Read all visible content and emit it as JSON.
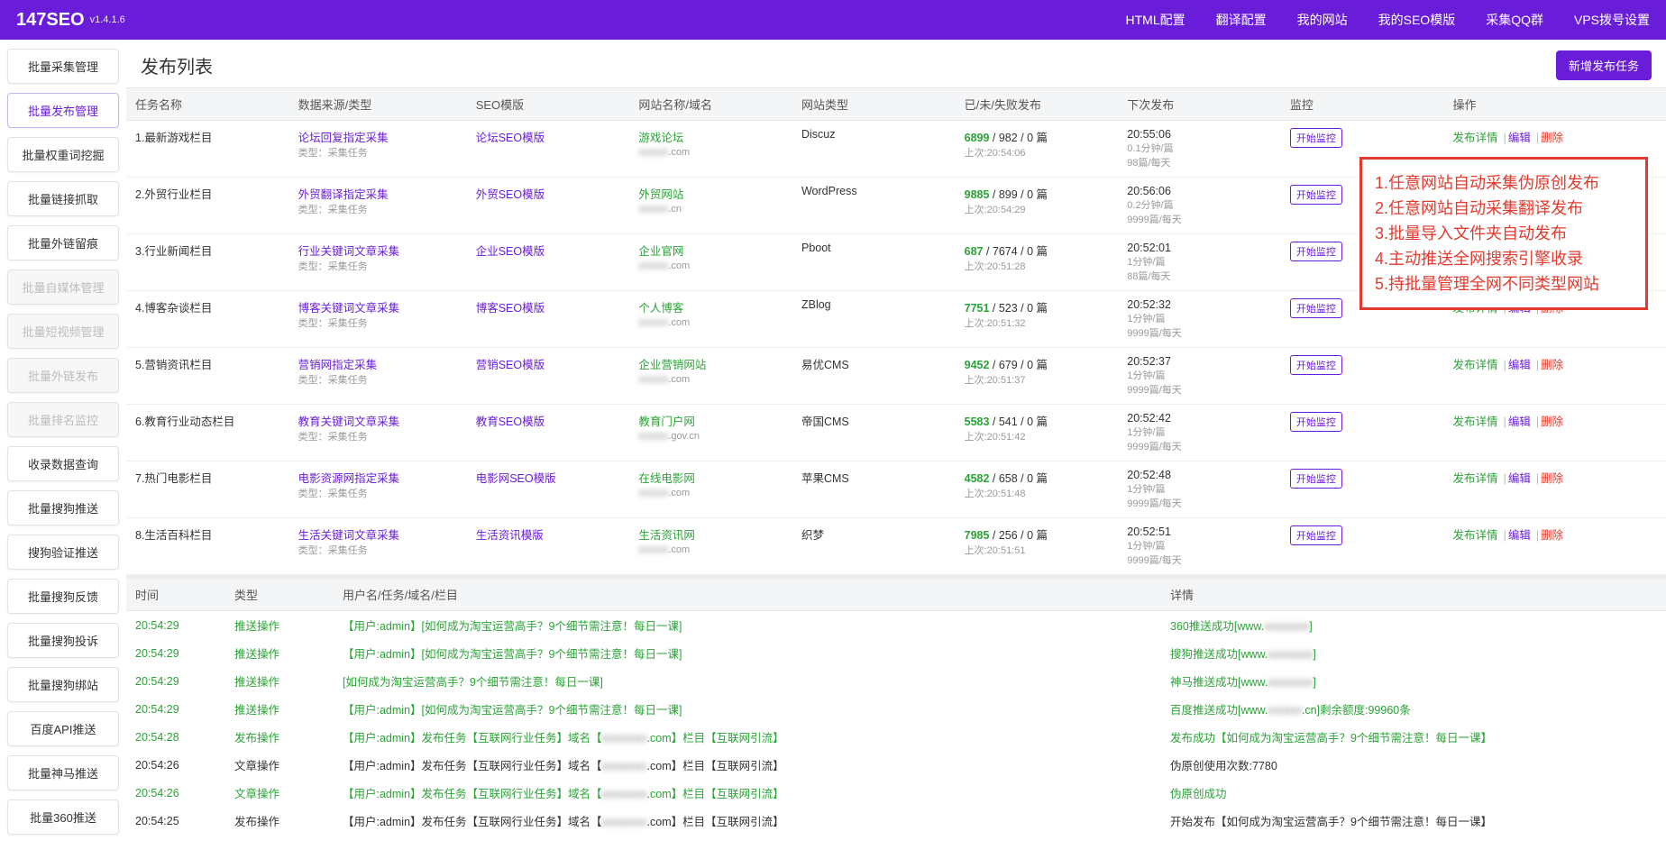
{
  "brand": {
    "name": "147SEO",
    "version": "v1.4.1.6"
  },
  "topnav": [
    "HTML配置",
    "翻译配置",
    "我的网站",
    "我的SEO模版",
    "采集QQ群",
    "VPS拨号设置"
  ],
  "sidebar": [
    {
      "label": "批量采集管理",
      "state": "normal"
    },
    {
      "label": "批量发布管理",
      "state": "active"
    },
    {
      "label": "批量权重词挖掘",
      "state": "normal"
    },
    {
      "label": "批量链接抓取",
      "state": "normal"
    },
    {
      "label": "批量外链留痕",
      "state": "normal"
    },
    {
      "label": "批量自媒体管理",
      "state": "disabled"
    },
    {
      "label": "批量短视频管理",
      "state": "disabled"
    },
    {
      "label": "批量外链发布",
      "state": "disabled"
    },
    {
      "label": "批量排名监控",
      "state": "disabled"
    },
    {
      "label": "收录数据查询",
      "state": "normal"
    },
    {
      "label": "批量搜狗推送",
      "state": "normal"
    },
    {
      "label": "搜狗验证推送",
      "state": "normal"
    },
    {
      "label": "批量搜狗反馈",
      "state": "normal"
    },
    {
      "label": "批量搜狗投诉",
      "state": "normal"
    },
    {
      "label": "批量搜狗绑站",
      "state": "normal"
    },
    {
      "label": "百度API推送",
      "state": "normal"
    },
    {
      "label": "批量神马推送",
      "state": "normal"
    },
    {
      "label": "批量360推送",
      "state": "normal"
    }
  ],
  "page": {
    "title": "发布列表",
    "add_btn": "新增发布任务"
  },
  "task_headers": [
    "任务名称",
    "数据来源/类型",
    "SEO模版",
    "网站名称/域名",
    "网站类型",
    "已/未/失败发布",
    "下次发布",
    "监控",
    "操作"
  ],
  "task_sub": "类型：采集任务",
  "monitor_label": "开始监控",
  "op_labels": {
    "detail": "发布详情",
    "edit": "编辑",
    "del": "删除"
  },
  "tasks": [
    {
      "idx": "1",
      "name": "最新游戏栏目",
      "src": "论坛回复指定采集",
      "tpl": "论坛SEO模版",
      "site": "游戏论坛",
      "domain": ".com",
      "type": "Discuz",
      "done": "6899",
      "undone": "982",
      "fail": "0 篇",
      "last": "上次:20:54:06",
      "next": "20:55:06",
      "freq": "0.1分钟/篇",
      "rate": "98篇/每天"
    },
    {
      "idx": "2",
      "name": "外贸行业栏目",
      "src": "外贸翻译指定采集",
      "tpl": "外贸SEO模版",
      "site": "外贸网站",
      "domain": ".cn",
      "type": "WordPress",
      "done": "9885",
      "undone": "899",
      "fail": "0 篇",
      "last": "上次:20:54:29",
      "next": "20:56:06",
      "freq": "0.2分钟/篇",
      "rate": "9999篇/每天"
    },
    {
      "idx": "3",
      "name": "行业新闻栏目",
      "src": "行业关键词文章采集",
      "tpl": "企业SEO模版",
      "site": "企业官网",
      "domain": ".com",
      "type": "Pboot",
      "done": "687",
      "undone": "7674",
      "fail": "0 篇",
      "last": "上次:20:51:28",
      "next": "20:52:01",
      "freq": "1分钟/篇",
      "rate": "88篇/每天"
    },
    {
      "idx": "4",
      "name": "博客杂谈栏目",
      "src": "博客关键词文章采集",
      "tpl": "博客SEO模版",
      "site": "个人博客",
      "domain": ".com",
      "type": "ZBlog",
      "done": "7751",
      "undone": "523",
      "fail": "0 篇",
      "last": "上次:20:51:32",
      "next": "20:52:32",
      "freq": "1分钟/篇",
      "rate": "9999篇/每天"
    },
    {
      "idx": "5",
      "name": "营销资讯栏目",
      "src": "营销网指定采集",
      "tpl": "营销SEO模版",
      "site": "企业营销网站",
      "domain": ".com",
      "type": "易优CMS",
      "done": "9452",
      "undone": "679",
      "fail": "0 篇",
      "last": "上次:20:51:37",
      "next": "20:52:37",
      "freq": "1分钟/篇",
      "rate": "9999篇/每天"
    },
    {
      "idx": "6",
      "name": "教育行业动态栏目",
      "src": "教育关键词文章采集",
      "tpl": "教育SEO模版",
      "site": "教育门户网",
      "domain": ".gov.cn",
      "type": "帝国CMS",
      "done": "5583",
      "undone": "541",
      "fail": "0 篇",
      "last": "上次:20:51:42",
      "next": "20:52:42",
      "freq": "1分钟/篇",
      "rate": "9999篇/每天"
    },
    {
      "idx": "7",
      "name": "热门电影栏目",
      "src": "电影资源网指定采集",
      "tpl": "电影网SEO模版",
      "site": "在线电影网",
      "domain": ".com",
      "type": "苹果CMS",
      "done": "4582",
      "undone": "658",
      "fail": "0 篇",
      "last": "上次:20:51:48",
      "next": "20:52:48",
      "freq": "1分钟/篇",
      "rate": "9999篇/每天"
    },
    {
      "idx": "8",
      "name": "生活百科栏目",
      "src": "生活关键词文章采集",
      "tpl": "生活资讯模版",
      "site": "生活资讯网",
      "domain": ".com",
      "type": "织梦",
      "done": "7985",
      "undone": "256",
      "fail": "0 篇",
      "last": "上次:20:51:51",
      "next": "20:52:51",
      "freq": "1分钟/篇",
      "rate": "9999篇/每天"
    }
  ],
  "callout": [
    "1.任意网站自动采集伪原创发布",
    "2.任意网站自动采集翻译发布",
    "3.批量导入文件夹自动发布",
    "4.主动推送全网搜索引擎收录",
    "5.持批量管理全网不同类型网站"
  ],
  "log_headers": [
    "时间",
    "类型",
    "用户名/任务/域名/栏目",
    "详情"
  ],
  "logs": [
    {
      "g": true,
      "time": "20:54:29",
      "type": "推送操作",
      "task": "【用户:admin】[如何成为淘宝运营高手？9个细节需注意！每日一课]",
      "detail_pre": "360推送成功[www.",
      "detail_blur": "xxxxxxxx",
      "detail_post": "]"
    },
    {
      "g": true,
      "time": "20:54:29",
      "type": "推送操作",
      "task": "【用户:admin】[如何成为淘宝运营高手？9个细节需注意！每日一课]",
      "detail_pre": "搜狗推送成功[www.",
      "detail_blur": "xxxxxxxx",
      "detail_post": "]"
    },
    {
      "g": true,
      "time": "20:54:29",
      "type": "推送操作",
      "task": "[如何成为淘宝运营高手？9个细节需注意！每日一课]",
      "detail_pre": "神马推送成功[www.",
      "detail_blur": "xxxxxxxx",
      "detail_post": "]"
    },
    {
      "g": true,
      "time": "20:54:29",
      "type": "推送操作",
      "task": "【用户:admin】[如何成为淘宝运营高手？9个细节需注意！每日一课]",
      "detail_pre": "百度推送成功[www.",
      "detail_blur": "xxxxxx",
      "detail_post": ".cn]剩余额度:99960条"
    },
    {
      "g": true,
      "time": "20:54:28",
      "type": "发布操作",
      "task": "【用户:admin】发布任务【互联网行业任务】域名【xxxxxxxx.com】栏目【互联网引流】",
      "detail_pre": "发布成功【如何成为淘宝运营高手？9个细节需注意！每日一课】",
      "detail_blur": "",
      "detail_post": ""
    },
    {
      "g": false,
      "time": "20:54:26",
      "type": "文章操作",
      "task": "【用户:admin】发布任务【互联网行业任务】域名【xxxxxxxx.com】栏目【互联网引流】",
      "detail_pre": "伪原创使用次数:7780",
      "detail_blur": "",
      "detail_post": ""
    },
    {
      "g": true,
      "time": "20:54:26",
      "type": "文章操作",
      "task": "【用户:admin】发布任务【互联网行业任务】域名【xxxxxxxx.com】栏目【互联网引流】",
      "detail_pre": "伪原创成功",
      "detail_blur": "",
      "detail_post": ""
    },
    {
      "g": false,
      "time": "20:54:25",
      "type": "发布操作",
      "task": "【用户:admin】发布任务【互联网行业任务】域名【xxxxxxxx.com】栏目【互联网引流】",
      "detail_pre": "开始发布【如何成为淘宝运营高手？9个细节需注意！每日一课】",
      "detail_blur": "",
      "detail_post": ""
    }
  ]
}
